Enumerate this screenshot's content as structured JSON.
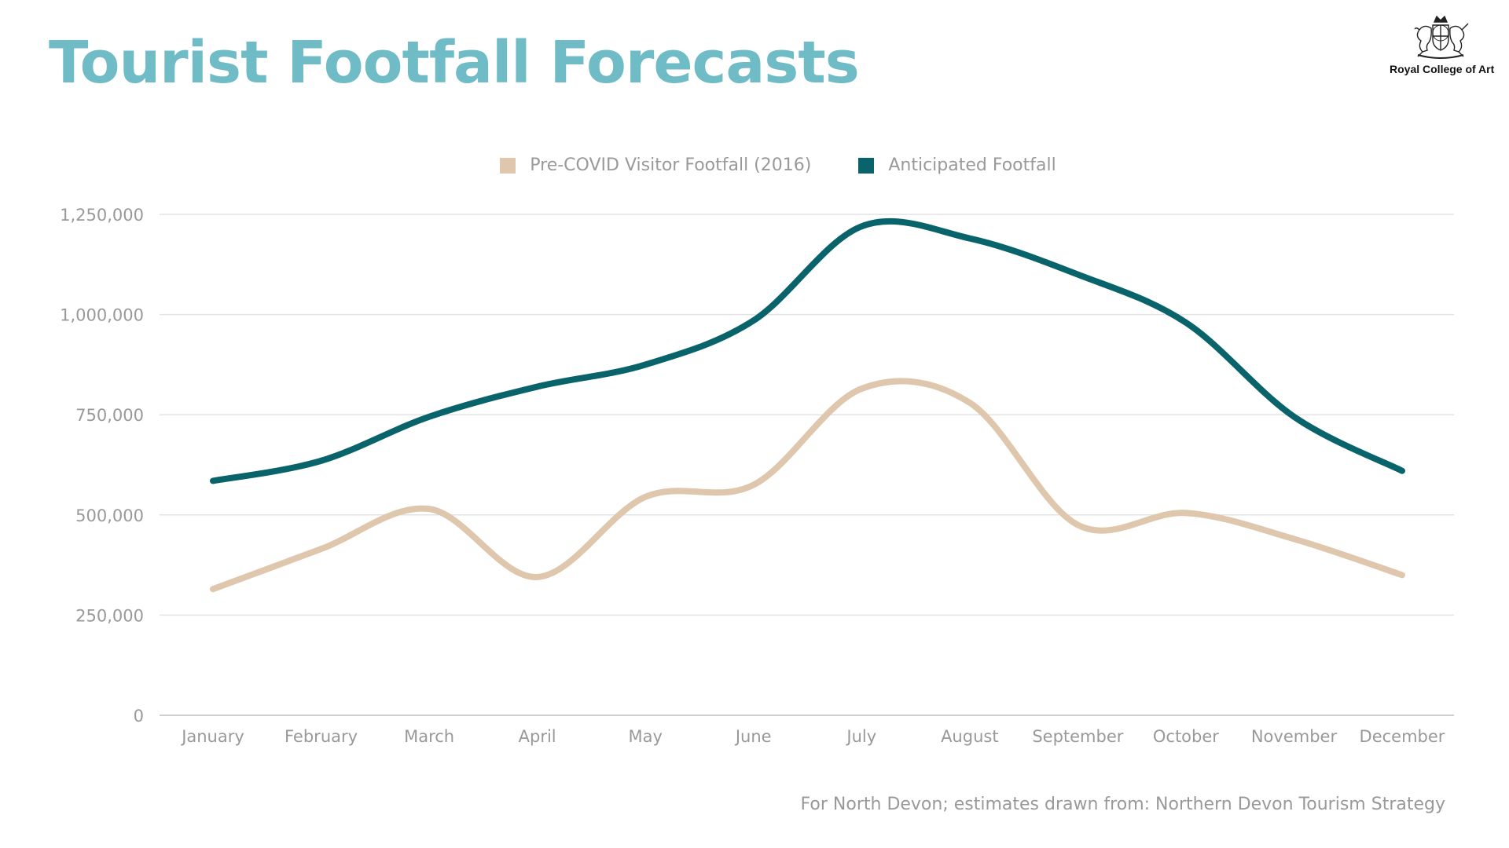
{
  "title": "Tourist Footfall Forecasts",
  "logo": {
    "text": "Royal College of Art",
    "icon": "royal-coat-of-arms-icon"
  },
  "source_note": "For North Devon; estimates drawn from: Northern Devon Tourism Strategy",
  "colors": {
    "title": "#6fbcc6",
    "pre_covid": "#dfc7ad",
    "anticipated": "#08636a",
    "grid": "#e3e3e3",
    "axis_text": "#999999"
  },
  "legend": {
    "placement": "top-center",
    "items": [
      {
        "label": "Pre-COVID Visitor Footfall (2016)",
        "color": "#dfc7ad"
      },
      {
        "label": "Anticipated Footfall",
        "color": "#08636a"
      }
    ]
  },
  "chart_data": {
    "type": "line",
    "title": "",
    "xlabel": "",
    "ylabel": "",
    "smooth": true,
    "grid": true,
    "ylim": [
      0,
      1250000
    ],
    "y_ticks": [
      0,
      250000,
      500000,
      750000,
      1000000,
      1250000
    ],
    "y_tick_labels": [
      "0",
      "250,000",
      "500,000",
      "750,000",
      "1,000,000",
      "1,250,000"
    ],
    "categories": [
      "January",
      "February",
      "March",
      "April",
      "May",
      "June",
      "July",
      "August",
      "September",
      "October",
      "November",
      "December"
    ],
    "series": [
      {
        "name": "Pre-COVID Visitor Footfall (2016)",
        "color": "#dfc7ad",
        "values": [
          315000,
          415000,
          515000,
          345000,
          545000,
          575000,
          815000,
          780000,
          475000,
          505000,
          440000,
          350000
        ]
      },
      {
        "name": "Anticipated Footfall",
        "color": "#08636a",
        "values": [
          585000,
          635000,
          745000,
          820000,
          875000,
          985000,
          1220000,
          1190000,
          1100000,
          980000,
          745000,
          610000
        ]
      }
    ]
  }
}
